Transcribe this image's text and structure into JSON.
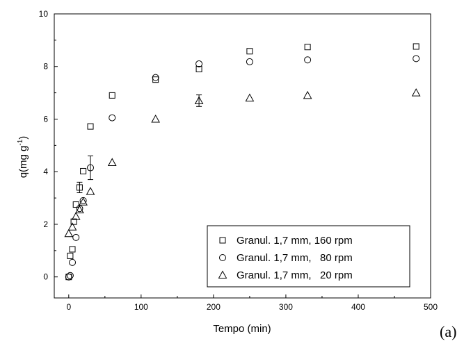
{
  "chart_data": {
    "type": "scatter",
    "panel_label": "(a)",
    "xlabel": "Tempo (min)",
    "ylabel_base": "q(mg g",
    "ylabel_sup": "-1",
    "ylabel_end": ")",
    "xlim": [
      -20,
      500
    ],
    "ylim": [
      -0.8,
      10
    ],
    "xticks": [
      0,
      100,
      200,
      300,
      400,
      500
    ],
    "yticks": [
      0,
      2,
      4,
      6,
      8,
      10
    ],
    "grid": false,
    "legend_position": "bottom-right",
    "series": [
      {
        "name": "Granul. 1,7 mm, 160 rpm",
        "marker": "square",
        "x": [
          0,
          2,
          5,
          7,
          10,
          15,
          20,
          30,
          60,
          120,
          180,
          250,
          330,
          480
        ],
        "y": [
          0.0,
          0.8,
          1.05,
          2.1,
          2.75,
          3.4,
          4.02,
          5.72,
          6.9,
          7.5,
          7.9,
          8.58,
          8.74,
          8.76
        ],
        "err": [
          0,
          0,
          0,
          0,
          0,
          0.2,
          0,
          0,
          0,
          0,
          0,
          0,
          0,
          0
        ]
      },
      {
        "name": "Granul. 1,7 mm,   80 rpm",
        "marker": "circle",
        "x": [
          0,
          2,
          5,
          10,
          15,
          20,
          30,
          60,
          120,
          180,
          250,
          330,
          480
        ],
        "y": [
          0.0,
          0.05,
          0.55,
          1.5,
          2.6,
          2.9,
          4.15,
          6.05,
          7.58,
          8.1,
          8.18,
          8.25,
          8.3
        ],
        "err": [
          0,
          0,
          0,
          0,
          0,
          0,
          0.45,
          0,
          0,
          0,
          0,
          0,
          0
        ]
      },
      {
        "name": "Granul. 1,7 mm,   20 rpm",
        "marker": "triangle",
        "x": [
          0,
          5,
          10,
          15,
          20,
          30,
          60,
          120,
          180,
          250,
          330,
          480
        ],
        "y": [
          1.65,
          1.9,
          2.3,
          2.55,
          2.85,
          3.25,
          4.35,
          6.0,
          6.7,
          6.8,
          6.9,
          7.0
        ],
        "err": [
          0,
          0,
          0,
          0,
          0,
          0,
          0,
          0,
          0.22,
          0,
          0,
          0
        ]
      }
    ]
  }
}
